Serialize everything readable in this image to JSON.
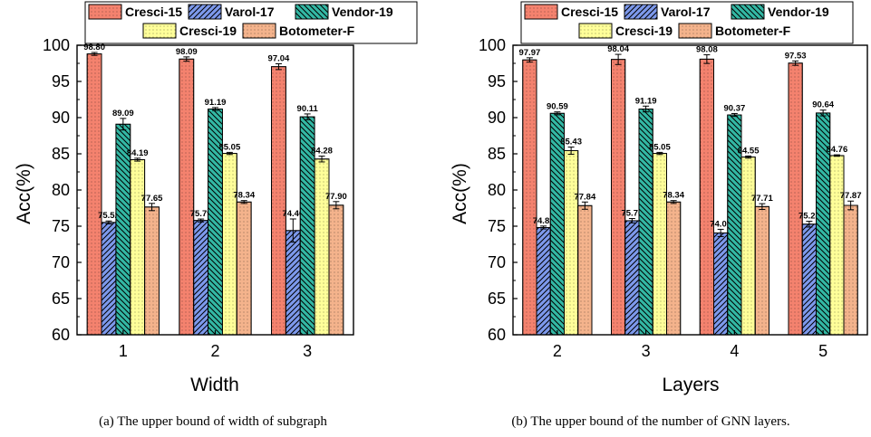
{
  "chart_data": [
    {
      "type": "bar",
      "title": "",
      "xlabel": "Width",
      "ylabel": "Acc(%)",
      "ylim": [
        60,
        100
      ],
      "yticks": [
        "60",
        "65",
        "70",
        "75",
        "80",
        "85",
        "90",
        "95",
        "100"
      ],
      "categories": [
        "1",
        "2",
        "3"
      ],
      "legend_placement": "top",
      "series": [
        {
          "name": "Cresci-15",
          "values": [
            98.8,
            98.09,
            97.04
          ],
          "labels": [
            "98.80",
            "98.09",
            "97.04"
          ],
          "errors": [
            0.2,
            0.3,
            0.4
          ]
        },
        {
          "name": "Varol-17",
          "values": [
            75.52,
            75.79,
            74.4
          ],
          "labels": [
            "75.52",
            "75.79",
            "74.40"
          ],
          "errors": [
            0.2,
            0.2,
            1.6
          ]
        },
        {
          "name": "Vendor-19",
          "values": [
            89.09,
            91.19,
            90.11
          ],
          "labels": [
            "89.09",
            "91.19",
            "90.11"
          ],
          "errors": [
            0.8,
            0.2,
            0.4
          ]
        },
        {
          "name": "Cresci-19",
          "values": [
            84.19,
            85.05,
            84.28
          ],
          "labels": [
            "84.19",
            "85.05",
            "84.28"
          ],
          "errors": [
            0.2,
            0.15,
            0.4
          ]
        },
        {
          "name": "Botometer-F",
          "values": [
            77.65,
            78.34,
            77.9
          ],
          "labels": [
            "77.65",
            "78.34",
            "77.90"
          ],
          "errors": [
            0.5,
            0.2,
            0.5
          ]
        }
      ],
      "caption": "(a)  The upper bound of width of subgraph"
    },
    {
      "type": "bar",
      "title": "",
      "xlabel": "Layers",
      "ylabel": "Acc(%)",
      "ylim": [
        60,
        100
      ],
      "yticks": [
        "60",
        "65",
        "70",
        "75",
        "80",
        "85",
        "90",
        "95",
        "100"
      ],
      "categories": [
        "2",
        "3",
        "4",
        "5"
      ],
      "legend_placement": "top",
      "series": [
        {
          "name": "Cresci-15",
          "values": [
            97.97,
            98.04,
            98.08,
            97.53
          ],
          "labels": [
            "97.97",
            "98.04",
            "98.08",
            "97.53"
          ],
          "errors": [
            0.3,
            0.7,
            0.6,
            0.3
          ]
        },
        {
          "name": "Varol-17",
          "values": [
            74.82,
            75.76,
            74.07,
            75.28
          ],
          "labels": [
            "74.82",
            "75.76",
            "74.07",
            "75.28"
          ],
          "errors": [
            0.2,
            0.3,
            0.5,
            0.4
          ]
        },
        {
          "name": "Vendor-19",
          "values": [
            90.59,
            91.19,
            90.37,
            90.64
          ],
          "labels": [
            "90.59",
            "91.19",
            "90.37",
            "90.64"
          ],
          "errors": [
            0.2,
            0.4,
            0.2,
            0.4
          ]
        },
        {
          "name": "Cresci-19",
          "values": [
            85.43,
            85.05,
            84.55,
            84.76
          ],
          "labels": [
            "85.43",
            "85.05",
            "84.55",
            "84.76"
          ],
          "errors": [
            0.5,
            0.15,
            0.15,
            0.1
          ]
        },
        {
          "name": "Botometer-F",
          "values": [
            77.84,
            78.34,
            77.71,
            77.87
          ],
          "labels": [
            "77.84",
            "78.34",
            "77.71",
            "77.87"
          ],
          "errors": [
            0.5,
            0.2,
            0.4,
            0.6
          ]
        }
      ],
      "caption": "(b)  The upper bound of the number of GNN layers."
    }
  ],
  "colors": {
    "Cresci-15": "#f4826e",
    "Varol-17": "#7d99ec",
    "Vendor-19": "#33b8a4",
    "Cresci-19": "#ffff99",
    "Botometer-F": "#f4b38c"
  }
}
